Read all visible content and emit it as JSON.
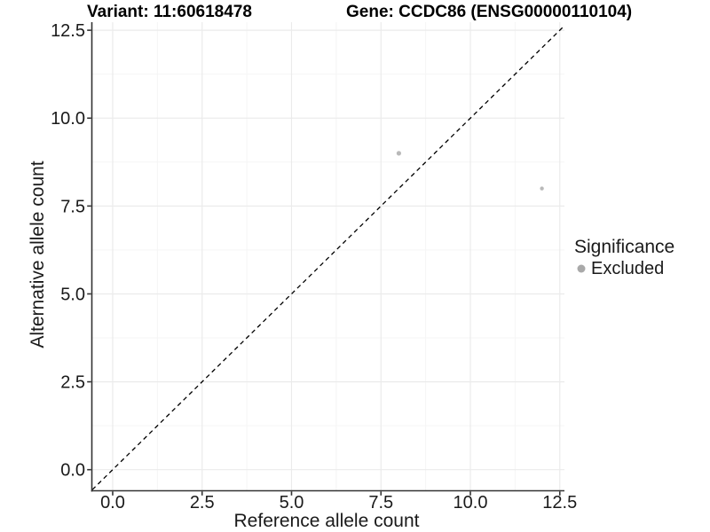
{
  "header": {
    "title_variant": "Variant: 11:60618478",
    "title_gene": "Gene: CCDC86 (ENSG00000110104)"
  },
  "chart_data": {
    "type": "scatter",
    "title": "Variant: 11:60618478    Gene: CCDC86 (ENSG00000110104)",
    "xlabel": "Reference allele count",
    "ylabel": "Alternative allele count",
    "xlim": [
      -0.57,
      12.63
    ],
    "ylim": [
      -0.6,
      12.73
    ],
    "x_ticks": [
      0,
      2.5,
      5,
      7.5,
      10,
      12.5
    ],
    "x_tick_labels": [
      "0.0",
      "2.5",
      "5.0",
      "7.5",
      "10.0",
      "12.5"
    ],
    "y_ticks": [
      0,
      2.5,
      5,
      7.5,
      10,
      12.5
    ],
    "y_tick_labels": [
      "0.0",
      "2.5",
      "5.0",
      "7.5",
      "10.0",
      "12.5"
    ],
    "grid": {
      "major": true,
      "minor": true
    },
    "reference_line": {
      "equation": "y = x",
      "style": "dashed",
      "color": "#000000"
    },
    "series": [
      {
        "name": "Excluded",
        "color": "#b9b9b9",
        "points": [
          {
            "x": 8,
            "y": 9,
            "radius": 2.6
          },
          {
            "x": 12,
            "y": 8,
            "radius": 2.2
          }
        ]
      }
    ],
    "legend": {
      "title": "Significance",
      "position": "right",
      "items": [
        {
          "label": "Excluded",
          "color": "#a9a9a9"
        }
      ]
    },
    "colors": {
      "major_grid": "#ebebeb",
      "minor_grid": "#f5f5f5",
      "axis_line": "#333333",
      "tick_mark": "#333333",
      "point": "#b9b9b9"
    }
  }
}
